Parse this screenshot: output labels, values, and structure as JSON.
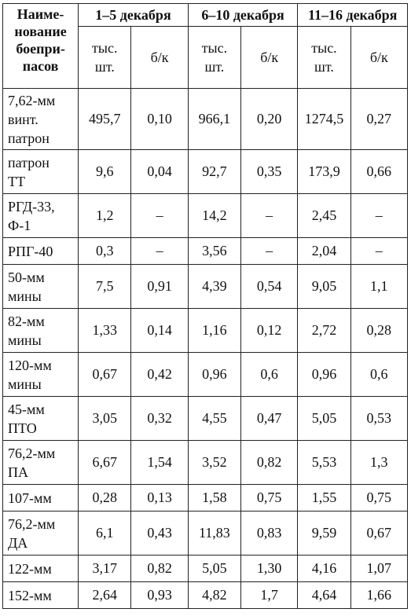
{
  "header": {
    "name_col": "Наиме-\nнование\nбоепри-\nпасов",
    "periods": [
      "1–5 декабря",
      "6–10 декабря",
      "11–16 декабря"
    ],
    "unit_pcs": "тыс.\nшт.",
    "unit_bk": "б/к"
  },
  "rows": [
    {
      "name": "7,62-мм\nвинт.\nпатрон",
      "v": [
        "495,7",
        "0,10",
        "966,1",
        "0,20",
        "1274,5",
        "0,27"
      ]
    },
    {
      "name": "патрон\nТТ",
      "v": [
        "9,6",
        "0,04",
        "92,7",
        "0,35",
        "173,9",
        "0,66"
      ]
    },
    {
      "name": "РГД-33,\nФ-1",
      "v": [
        "1,2",
        "–",
        "14,2",
        "–",
        "2,45",
        "–"
      ]
    },
    {
      "name": "РПГ-40",
      "v": [
        "0,3",
        "–",
        "3,56",
        "–",
        "2,04",
        "–"
      ]
    },
    {
      "name": "50-мм\nмины",
      "v": [
        "7,5",
        "0,91",
        "4,39",
        "0,54",
        "9,05",
        "1,1"
      ]
    },
    {
      "name": "82-мм\nмины",
      "v": [
        "1,33",
        "0,14",
        "1,16",
        "0,12",
        "2,72",
        "0,28"
      ]
    },
    {
      "name": "120-мм\nмины",
      "v": [
        "0,67",
        "0,42",
        "0,96",
        "0,6",
        "0,96",
        "0,6"
      ]
    },
    {
      "name": "45-мм\nПТО",
      "v": [
        "3,05",
        "0,32",
        "4,55",
        "0,47",
        "5,05",
        "0,53"
      ]
    },
    {
      "name": "76,2-мм\nПА",
      "v": [
        "6,67",
        "1,54",
        "3,52",
        "0,82",
        "5,53",
        "1,3"
      ]
    },
    {
      "name": "107-мм",
      "v": [
        "0,28",
        "0,13",
        "1,58",
        "0,75",
        "1,55",
        "0,75"
      ]
    },
    {
      "name": "76,2-мм\nДА",
      "v": [
        "6,1",
        "0,43",
        "11,83",
        "0,83",
        "9,59",
        "0,67"
      ]
    },
    {
      "name": "122-мм",
      "v": [
        "3,17",
        "0,82",
        "5,05",
        "1,30",
        "4,16",
        "1,07"
      ]
    },
    {
      "name": "152-мм",
      "v": [
        "2,64",
        "0,93",
        "4,82",
        "1,7",
        "4,64",
        "1,66"
      ]
    }
  ]
}
